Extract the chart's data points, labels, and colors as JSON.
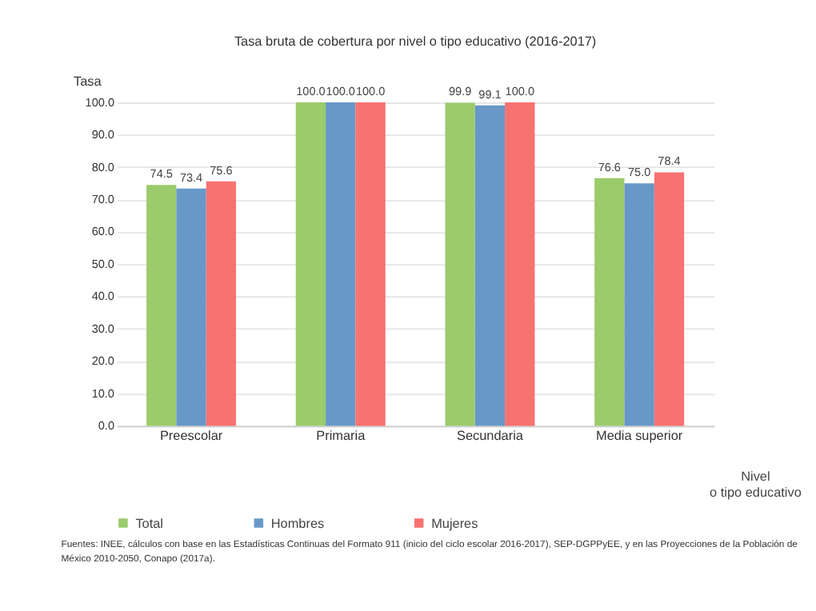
{
  "chart_data": {
    "type": "bar",
    "title": "Tasa bruta de cobertura por nivel  o tipo educativo (2016-2017)",
    "ylabel": "Tasa",
    "xlabel": "Nivel\no tipo educativo",
    "categories": [
      "Preescolar",
      "Primaria",
      "Secundaria",
      "Media superior"
    ],
    "series": [
      {
        "name": "Total",
        "color": "#9bcb6b",
        "values": [
          74.5,
          100.0,
          99.9,
          76.6
        ],
        "value_labels": [
          "74.5",
          "100.0",
          "99.9",
          "76.6"
        ]
      },
      {
        "name": "Hombres",
        "color": "#6898c8",
        "values": [
          73.4,
          100.0,
          99.1,
          75.0
        ],
        "value_labels": [
          "73.4",
          "100.0",
          "99.1",
          "75.0"
        ]
      },
      {
        "name": "Mujeres",
        "color": "#f87272",
        "values": [
          75.6,
          100.0,
          100.0,
          78.4
        ],
        "value_labels": [
          "75.6",
          "100.0",
          "100.0",
          "78.4"
        ]
      }
    ],
    "ylim": [
      0,
      100
    ],
    "yticks": [
      {
        "value": 0,
        "label": "0.0"
      },
      {
        "value": 10,
        "label": "10.0"
      },
      {
        "value": 20,
        "label": "20.0"
      },
      {
        "value": 30,
        "label": "30.0"
      },
      {
        "value": 40,
        "label": "40.0"
      },
      {
        "value": 50,
        "label": "50.0"
      },
      {
        "value": 60,
        "label": "60.0"
      },
      {
        "value": 70,
        "label": "70.0"
      },
      {
        "value": 80,
        "label": "80.0"
      },
      {
        "value": 90,
        "label": "90.0"
      },
      {
        "value": 100,
        "label": "100.0"
      }
    ],
    "grid": "y",
    "legend": "bottom",
    "annotations": [
      "Fuentes: INEE, cálculos con base en las Estadísticas Continuas del Formato 911 (inicio del ciclo escolar 2016-2017), SEP-DGPPyEE, y en las Proyecciones de la Población de México 2010-2050, Conapo (2017a)."
    ]
  }
}
